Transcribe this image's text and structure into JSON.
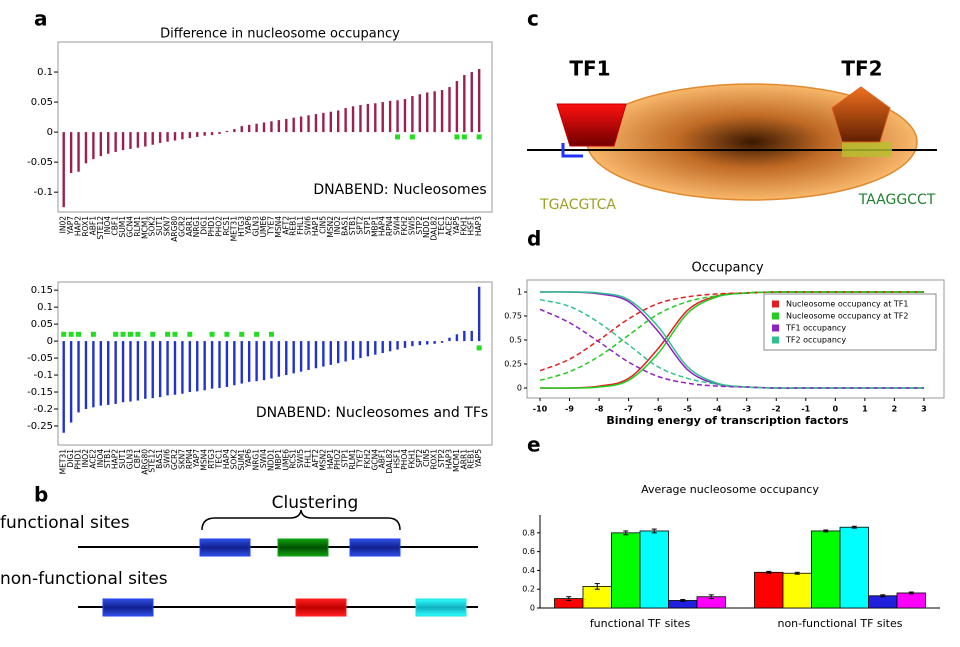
{
  "chart_data": [
    {
      "type": "stem",
      "title": "Difference in nucleosome occupancy",
      "annotation": "DNABEND: Nucleosomes",
      "categories": [
        "IN02",
        "YAP7",
        "HAP2",
        "ROX1",
        "ABF1",
        "STE12",
        "INO4",
        "CBF1",
        "SUM1",
        "GCN4",
        "RLM1",
        "MCM1",
        "SOK2",
        "SUT1",
        "SKN7",
        "ARG80",
        "GCR2",
        "ARR1",
        "NRG1",
        "DIG1",
        "PHD1",
        "PHO2",
        "RCS1",
        "MET31",
        "HTG3",
        "YAP6",
        "GLN3",
        "UME6",
        "TYE7",
        "MSN4",
        "AFT2",
        "REB1",
        "FHL1",
        "SWI6",
        "HAP1",
        "CIN5",
        "MSN2",
        "INO2",
        "BAS1",
        "STB1",
        "SPT2",
        "STP1",
        "MBP1",
        "HAP4",
        "RPN4",
        "SWI4",
        "FKH2",
        "SWI5",
        "STP2",
        "NDD1",
        "DAL82",
        "TEC1",
        "ACE2",
        "YAP5",
        "FKH1",
        "HSF1",
        "HAP3"
      ],
      "series": [
        {
          "color": "#9b2050",
          "values": [
            -0.125,
            -0.068,
            -0.066,
            -0.052,
            -0.045,
            -0.04,
            -0.036,
            -0.033,
            -0.03,
            -0.028,
            -0.026,
            -0.024,
            -0.021,
            -0.018,
            -0.016,
            -0.014,
            -0.012,
            -0.01,
            -0.008,
            -0.006,
            -0.005,
            -0.003,
            0.002,
            0.005,
            0.01,
            0.012,
            0.014,
            0.016,
            0.018,
            0.02,
            0.022,
            0.024,
            0.026,
            0.028,
            0.03,
            0.032,
            0.034,
            0.036,
            0.04,
            0.043,
            0.045,
            0.047,
            0.048,
            0.05,
            0.052,
            0.053,
            0.055,
            0.06,
            0.063,
            0.066,
            0.068,
            0.07,
            0.075,
            0.085,
            0.095,
            0.1,
            0.105
          ]
        },
        {
          "color": "#22dd22",
          "marker": true,
          "values": [
            null,
            null,
            null,
            null,
            null,
            null,
            null,
            null,
            null,
            null,
            null,
            null,
            null,
            null,
            null,
            null,
            null,
            null,
            null,
            null,
            null,
            null,
            null,
            null,
            null,
            null,
            null,
            null,
            null,
            null,
            null,
            null,
            null,
            null,
            null,
            null,
            null,
            null,
            null,
            null,
            null,
            null,
            null,
            null,
            null,
            -0.008,
            null,
            -0.008,
            null,
            null,
            null,
            null,
            null,
            -0.008,
            -0.008,
            null,
            -0.008
          ]
        }
      ],
      "ylim": [
        -0.133,
        0.15
      ],
      "yticks": [
        0.1,
        0.05,
        0,
        -0.05,
        -0.1
      ]
    },
    {
      "type": "stem",
      "annotation": "DNABEND: Nucleosomes and TFs",
      "categories": [
        "MET31",
        "DIG1",
        "PHD1",
        "INO2",
        "ACE2",
        "INO4",
        "STB1",
        "HAP2",
        "SUT1",
        "GLN3",
        "CBF1",
        "ARG80",
        "STE12",
        "BAS1",
        "SWI6",
        "GCR2",
        "SKN7",
        "RPN4",
        "YAP7",
        "MSN4",
        "RTG3",
        "TEC1",
        "HAP4",
        "SOK2",
        "SUM1",
        "YAP6",
        "NRG1",
        "SWI4",
        "NDD1",
        "MBP1",
        "UME6",
        "RCS1",
        "SWI5",
        "FHL1",
        "AFT2",
        "MSN2",
        "HAP1",
        "PHO2",
        "STP1",
        "RLM1",
        "TYE7",
        "FKH2",
        "GCN4",
        "ABF1",
        "DAL82",
        "HSF1",
        "PHO4",
        "FKH1",
        "SPT2",
        "CIN5",
        "ROX1",
        "STP2",
        "HAP3",
        "MCM1",
        "ARR1",
        "REB1",
        "YAP5"
      ],
      "series": [
        {
          "color": "#2233cc",
          "values": [
            -0.27,
            -0.24,
            -0.21,
            -0.2,
            -0.195,
            -0.19,
            -0.188,
            -0.185,
            -0.18,
            -0.178,
            -0.175,
            -0.17,
            -0.168,
            -0.165,
            -0.16,
            -0.158,
            -0.155,
            -0.15,
            -0.148,
            -0.145,
            -0.14,
            -0.138,
            -0.135,
            -0.13,
            -0.125,
            -0.12,
            -0.118,
            -0.115,
            -0.11,
            -0.105,
            -0.1,
            -0.095,
            -0.09,
            -0.085,
            -0.08,
            -0.075,
            -0.07,
            -0.065,
            -0.06,
            -0.055,
            -0.05,
            -0.045,
            -0.04,
            -0.035,
            -0.03,
            -0.025,
            -0.02,
            -0.015,
            -0.012,
            -0.01,
            -0.008,
            -0.005,
            0.01,
            0.02,
            0.03,
            0.03,
            0.16
          ]
        },
        {
          "color": "#22dd22",
          "marker": true,
          "values": [
            0.02,
            0.02,
            0.02,
            null,
            0.02,
            null,
            null,
            0.02,
            0.02,
            0.02,
            0.02,
            null,
            0.02,
            null,
            0.02,
            0.02,
            null,
            0.02,
            null,
            null,
            0.02,
            null,
            0.02,
            null,
            0.02,
            null,
            0.02,
            null,
            0.02,
            null,
            null,
            null,
            null,
            null,
            null,
            null,
            null,
            null,
            null,
            null,
            null,
            null,
            null,
            null,
            null,
            null,
            null,
            null,
            null,
            null,
            null,
            null,
            null,
            null,
            null,
            null,
            -0.02
          ]
        }
      ],
      "ylim": [
        -0.306,
        0.174
      ],
      "yticks": [
        0.15,
        0.1,
        0.05,
        0,
        -0.05,
        -0.1,
        -0.15,
        -0.2,
        -0.25
      ]
    },
    {
      "type": "line",
      "title": "Occupancy",
      "x_label": "Binding energy of transcription factors",
      "x": [
        -10,
        -9,
        -8,
        -7,
        -6,
        -5,
        -4,
        -3,
        -2,
        -1,
        0,
        1,
        2,
        3
      ],
      "series": [
        {
          "name": "Nucleosome occupancy at TF1",
          "color": "#e02020",
          "values": [
            0,
            0,
            0.02,
            0.1,
            0.41,
            0.81,
            0.96,
            0.99,
            1,
            1,
            1,
            1,
            1,
            1
          ]
        },
        {
          "name": "Nucleosome occupancy at TF2",
          "color": "#22cc22",
          "values": [
            0,
            0,
            0.01,
            0.08,
            0.36,
            0.78,
            0.95,
            0.99,
            1,
            1,
            1,
            1,
            1,
            1
          ]
        },
        {
          "name": "TF1 occupancy",
          "color": "#9020c0",
          "values": [
            1,
            1,
            0.98,
            0.9,
            0.59,
            0.19,
            0.04,
            0.01,
            0,
            0,
            0,
            0,
            0,
            0
          ]
        },
        {
          "name": "TF2 occupancy",
          "color": "#30c090",
          "values": [
            1,
            1,
            0.99,
            0.92,
            0.64,
            0.22,
            0.05,
            0.01,
            0,
            0,
            0,
            0,
            0,
            0
          ]
        },
        {
          "color": "#e02020",
          "dashed": true,
          "values": [
            0.18,
            0.3,
            0.5,
            0.72,
            0.88,
            0.95,
            0.98,
            0.99,
            1,
            1,
            1,
            1,
            1,
            1
          ]
        },
        {
          "color": "#22cc22",
          "dashed": true,
          "values": [
            0.08,
            0.17,
            0.33,
            0.55,
            0.77,
            0.9,
            0.96,
            0.99,
            1,
            1,
            1,
            1,
            1,
            1
          ]
        },
        {
          "color": "#9020c0",
          "dashed": true,
          "values": [
            0.82,
            0.68,
            0.48,
            0.27,
            0.12,
            0.05,
            0.02,
            0.01,
            0,
            0,
            0,
            0,
            0,
            0
          ]
        },
        {
          "color": "#30c090",
          "dashed": true,
          "values": [
            0.92,
            0.85,
            0.68,
            0.45,
            0.22,
            0.1,
            0.04,
            0.01,
            0,
            0,
            0,
            0,
            0,
            0
          ]
        }
      ],
      "xlim": [
        -10.44,
        3.68
      ],
      "xticks": [
        -10,
        -9,
        -8,
        -7,
        -6,
        -5,
        -4,
        -3,
        -2,
        -1,
        0,
        1,
        2,
        3
      ],
      "ylim": [
        -0.104,
        1.125
      ],
      "yticks": [
        0,
        0.25,
        0.5,
        0.75,
        1
      ],
      "legend": "top-right"
    },
    {
      "type": "bar",
      "title": "Average nucleosome occupancy",
      "categories": [
        "functional TF sites",
        "non-functional TF sites"
      ],
      "series": [
        {
          "color": "#ff0000",
          "values": [
            0.1,
            0.38
          ],
          "errors": [
            0.02,
            0.01
          ]
        },
        {
          "color": "#ffff00",
          "values": [
            0.23,
            0.37
          ],
          "errors": [
            0.03,
            0.01
          ]
        },
        {
          "color": "#00ff00",
          "values": [
            0.8,
            0.82
          ],
          "errors": [
            0.02,
            0.01
          ]
        },
        {
          "color": "#00ffff",
          "values": [
            0.82,
            0.86
          ],
          "errors": [
            0.02,
            0.01
          ]
        },
        {
          "color": "#2020dd",
          "values": [
            0.08,
            0.13
          ],
          "errors": [
            0.01,
            0.01
          ]
        },
        {
          "color": "#ff00ff",
          "values": [
            0.12,
            0.16
          ],
          "errors": [
            0.02,
            0.01
          ]
        }
      ],
      "ylim": [
        0,
        0.99
      ],
      "yticks": [
        0,
        0.2,
        0.4,
        0.6,
        0.8
      ]
    }
  ],
  "diagram": {
    "panel_labels": [
      "a",
      "b",
      "c",
      "d",
      "e"
    ],
    "b": {
      "functional": "functional sites",
      "nonfunctional": "non-functional sites",
      "clustering": "Clustering"
    },
    "c": {
      "tf1": "TF1",
      "tf2": "TF2",
      "seq1": "TGACGTCA",
      "seq2": "TAAGGCCT"
    }
  }
}
